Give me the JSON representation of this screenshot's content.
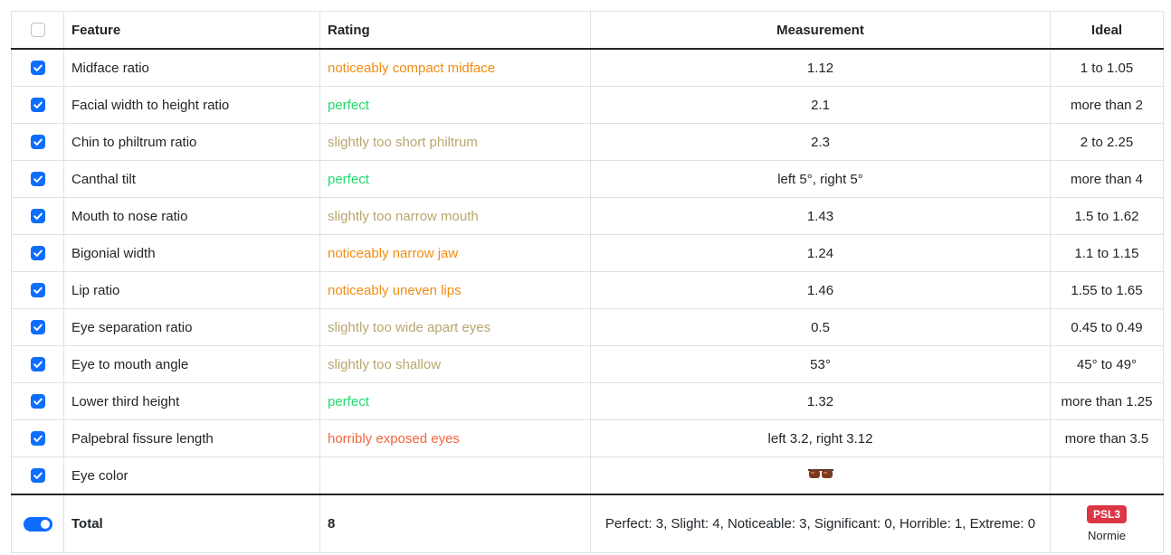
{
  "table": {
    "headers": [
      "Feature",
      "Rating",
      "Measurement",
      "Ideal"
    ],
    "header_checked": false,
    "rows": [
      {
        "checked": true,
        "feature": "Midface ratio",
        "rating": "noticeably compact midface",
        "rating_color": "#f28c0f",
        "measurement": "1.12",
        "ideal": "1 to 1.05"
      },
      {
        "checked": true,
        "feature": "Facial width to height ratio",
        "rating": "perfect",
        "rating_color": "#1fdb6a",
        "measurement": "2.1",
        "ideal": "more than 2"
      },
      {
        "checked": true,
        "feature": "Chin to philtrum ratio",
        "rating": "slightly too short philtrum",
        "rating_color": "#b8a66e",
        "measurement": "2.3",
        "ideal": "2 to 2.25"
      },
      {
        "checked": true,
        "feature": "Canthal tilt",
        "rating": "perfect",
        "rating_color": "#1fdb6a",
        "measurement": "left 5°, right 5°",
        "ideal": "more than 4"
      },
      {
        "checked": true,
        "feature": "Mouth to nose ratio",
        "rating": "slightly too narrow mouth",
        "rating_color": "#b8a66e",
        "measurement": "1.43",
        "ideal": "1.5 to 1.62"
      },
      {
        "checked": true,
        "feature": "Bigonial width",
        "rating": "noticeably narrow jaw",
        "rating_color": "#f28c0f",
        "measurement": "1.24",
        "ideal": "1.1 to 1.15"
      },
      {
        "checked": true,
        "feature": "Lip ratio",
        "rating": "noticeably uneven lips",
        "rating_color": "#f28c0f",
        "measurement": "1.46",
        "ideal": "1.55 to 1.65"
      },
      {
        "checked": true,
        "feature": "Eye separation ratio",
        "rating": "slightly too wide apart eyes",
        "rating_color": "#b8a66e",
        "measurement": "0.5",
        "ideal": "0.45 to 0.49"
      },
      {
        "checked": true,
        "feature": "Eye to mouth angle",
        "rating": "slightly too shallow",
        "rating_color": "#b8a66e",
        "measurement": "53°",
        "ideal": "45° to 49°"
      },
      {
        "checked": true,
        "feature": "Lower third height",
        "rating": "perfect",
        "rating_color": "#1fdb6a",
        "measurement": "1.32",
        "ideal": "more than 1.25"
      },
      {
        "checked": true,
        "feature": "Palpebral fissure length",
        "rating": "horribly exposed eyes",
        "rating_color": "#f2653f",
        "measurement": "left 3.2, right 3.12",
        "ideal": "more than 3.5"
      },
      {
        "checked": true,
        "feature": "Eye color"
      }
    ],
    "footer": {
      "toggle_on": true,
      "label": "Total",
      "count": "8",
      "summary": "Perfect: 3, Slight: 4, Noticeable: 3, Significant: 0, Horrible: 1, Extreme: 0",
      "badge": "PSL3",
      "verdict": "Normie"
    }
  }
}
